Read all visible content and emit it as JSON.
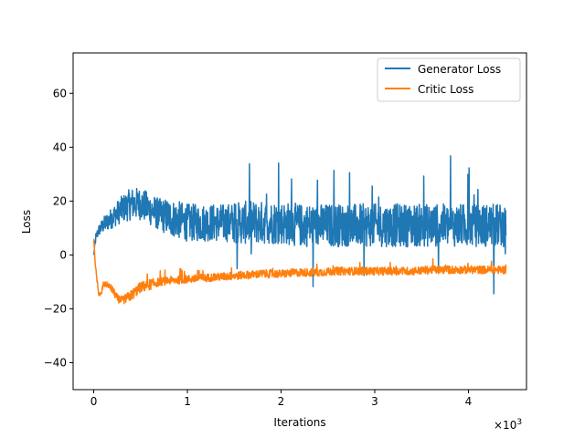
{
  "chart_data": {
    "type": "line",
    "xlabel": "Iterations",
    "ylabel": "Loss",
    "x_scale_label": "×10",
    "x_scale_exponent": "3",
    "xlim": [
      -0.22,
      4.62
    ],
    "ylim": [
      -50,
      75
    ],
    "x_ticks": [
      0,
      1,
      2,
      3,
      4
    ],
    "x_tick_labels": [
      "0",
      "1",
      "2",
      "3",
      "4"
    ],
    "y_ticks": [
      -40,
      -20,
      0,
      20,
      40,
      60
    ],
    "y_tick_labels": [
      "−40",
      "−20",
      "0",
      "20",
      "40",
      "60"
    ],
    "grid": false,
    "legend_position": "top-right",
    "series": [
      {
        "name": "Generator Loss",
        "color": "#1f77b4",
        "x": [
          0,
          0.02,
          0.05,
          0.1,
          0.2,
          0.3,
          0.4,
          0.5,
          0.6,
          0.7,
          0.8,
          0.9,
          1.0,
          1.2,
          1.4,
          1.6,
          1.8,
          2.0,
          2.2,
          2.4,
          2.6,
          2.8,
          3.0,
          3.2,
          3.4,
          3.6,
          3.8,
          4.0,
          4.2,
          4.4
        ],
        "mean": [
          0,
          6,
          9,
          11,
          14,
          17,
          19,
          19,
          17,
          15,
          14,
          13,
          12,
          12,
          12,
          12,
          12,
          12,
          11,
          11,
          11,
          11,
          11,
          11,
          11,
          11,
          11,
          11,
          11,
          11
        ],
        "spread": [
          0,
          2,
          2,
          3,
          4,
          5,
          6,
          6,
          6,
          6,
          7,
          7,
          7,
          7,
          7,
          8,
          8,
          8,
          8,
          8,
          8,
          8,
          8,
          8,
          8,
          8,
          8,
          8,
          8,
          8
        ]
      },
      {
        "name": "Critic Loss",
        "color": "#ff7f0e",
        "x": [
          0,
          0.02,
          0.05,
          0.08,
          0.1,
          0.15,
          0.2,
          0.25,
          0.3,
          0.4,
          0.5,
          0.6,
          0.7,
          0.8,
          1.0,
          1.2,
          1.4,
          1.6,
          1.8,
          2.0,
          2.2,
          2.4,
          2.6,
          2.8,
          3.0,
          3.2,
          3.4,
          3.6,
          3.8,
          4.0,
          4.2,
          4.4
        ],
        "mean": [
          6,
          -5,
          -14,
          -15,
          -11,
          -11,
          -13,
          -16,
          -17,
          -15,
          -12,
          -11,
          -10,
          -9.5,
          -9,
          -8.5,
          -8,
          -7.5,
          -7,
          -7,
          -6.5,
          -6.5,
          -6,
          -6,
          -6,
          -6,
          -6,
          -5.5,
          -5.5,
          -5.5,
          -5.5,
          -5.5
        ],
        "spread": [
          0,
          1,
          1,
          1,
          1,
          1,
          1.5,
          1.5,
          1.5,
          2,
          2,
          2,
          1.5,
          1.5,
          1.5,
          1.5,
          1.5,
          1.5,
          1.5,
          1.5,
          1.5,
          1.5,
          1.5,
          1.5,
          1.5,
          1.5,
          1.5,
          1.5,
          1.5,
          1.5,
          1.5,
          1.5
        ]
      }
    ]
  }
}
